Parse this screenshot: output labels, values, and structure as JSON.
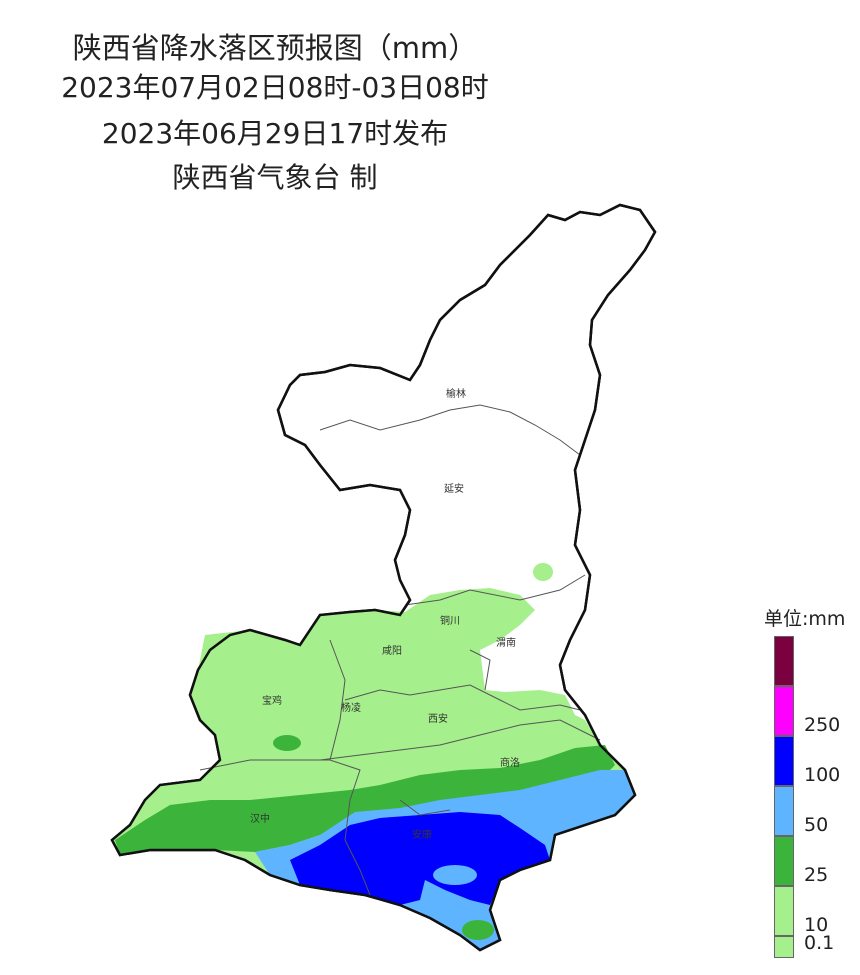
{
  "header": {
    "title": "陕西省降水落区预报图（mm）",
    "period": "2023年07月02日08时-03日08时",
    "issued": "2023年06月29日17时发布",
    "publisher": "陕西省气象台 制"
  },
  "cities": [
    "榆林",
    "延安",
    "铜川",
    "渭南",
    "咸阳",
    "宝鸡",
    "杨凌",
    "西安",
    "商洛",
    "汉中",
    "安康"
  ],
  "legend": {
    "unit": "单位:mm",
    "classes": [
      {
        "label": "",
        "color": "#7a0040"
      },
      {
        "label": "250",
        "color": "#ff00ff"
      },
      {
        "label": "100",
        "color": "#0000ff"
      },
      {
        "label": "50",
        "color": "#5fb4ff"
      },
      {
        "label": "25",
        "color": "#3cb43c"
      },
      {
        "label": "10",
        "color": "#a5f08c"
      },
      {
        "label": "0.1",
        "color": ""
      }
    ]
  }
}
